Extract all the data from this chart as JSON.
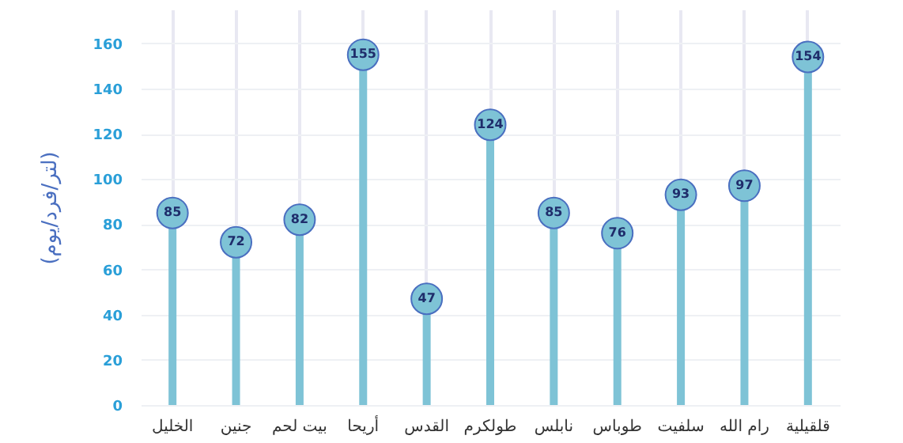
{
  "chart_data": {
    "type": "lollipop",
    "ylabel": "(لتر/فرد/يوم)",
    "categories": [
      "الخليل",
      "جنين",
      "بيت لحم",
      "أريحا",
      "القدس",
      "طولكرم",
      "نابلس",
      "طوباس",
      "سلفيت",
      "رام الله",
      "قلقيلية"
    ],
    "series": [
      {
        "color": "#7ec3d6",
        "values": [
          85,
          72,
          82,
          155,
          47,
          124,
          85,
          76,
          93,
          97,
          154
        ]
      }
    ],
    "ylim": [
      0,
      175
    ],
    "yticks": [
      0,
      20,
      40,
      60,
      80,
      100,
      120,
      140,
      160
    ],
    "grid": true,
    "marker": "circle",
    "data_labels": true
  }
}
